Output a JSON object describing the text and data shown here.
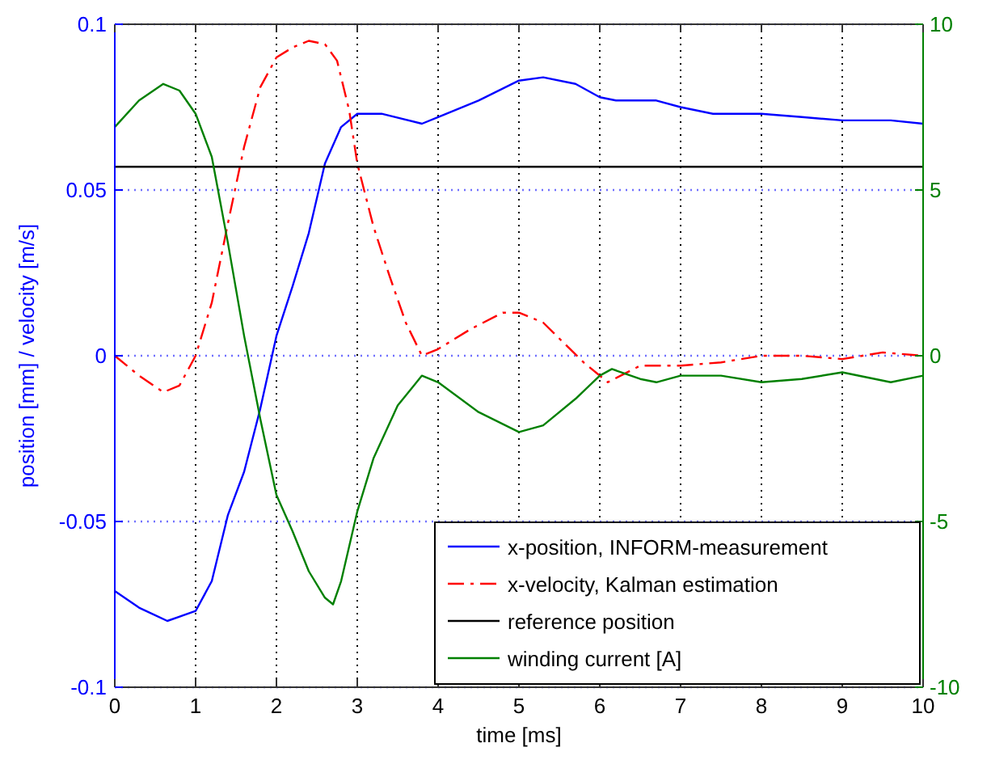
{
  "chart_data": {
    "type": "line",
    "xlabel": "time [ms]",
    "ylabel": "position [mm] / velocity [m/s]",
    "xlim": [
      0,
      10
    ],
    "xticks": [
      0,
      1,
      2,
      3,
      4,
      5,
      6,
      7,
      8,
      9,
      10
    ],
    "ylim": [
      -0.1,
      0.1
    ],
    "yticks": [
      -0.1,
      -0.05,
      0,
      0.05,
      0.1
    ],
    "y2lim": [
      -10,
      10
    ],
    "y2ticks": [
      -10,
      -5,
      0,
      5,
      10
    ],
    "grid": true,
    "legend": "bottom right",
    "series": [
      {
        "name": "x-position, INFORM-measurement",
        "color": "#0000ff",
        "line_style": "solid",
        "x": [
          0,
          0.3,
          0.65,
          1,
          1.2,
          1.4,
          1.6,
          1.8,
          2,
          2.2,
          2.4,
          2.6,
          2.8,
          3,
          3.3,
          3.8,
          4,
          4.5,
          5,
          5.3,
          5.7,
          6,
          6.2,
          6.7,
          7,
          7.4,
          8,
          8.5,
          9,
          9.6,
          10
        ],
        "values": [
          -0.071,
          -0.076,
          -0.08,
          -0.077,
          -0.068,
          -0.048,
          -0.035,
          -0.016,
          0.006,
          0.021,
          0.037,
          0.058,
          0.069,
          0.073,
          0.073,
          0.07,
          0.072,
          0.077,
          0.083,
          0.084,
          0.082,
          0.078,
          0.077,
          0.077,
          0.075,
          0.073,
          0.073,
          0.072,
          0.071,
          0.071,
          0.07
        ]
      },
      {
        "name": "x-velocity, Kalman estimation",
        "color": "#ff0000",
        "line_style": "dashed",
        "x": [
          0,
          0.3,
          0.6,
          0.8,
          1,
          1.2,
          1.4,
          1.6,
          1.8,
          2,
          2.2,
          2.4,
          2.6,
          2.75,
          2.9,
          3,
          3.2,
          3.4,
          3.6,
          3.8,
          4,
          4.4,
          4.8,
          5,
          5.3,
          5.8,
          6.1,
          6.5,
          7,
          7.5,
          8,
          8.5,
          9,
          9.5,
          10
        ],
        "values": [
          0,
          -0.006,
          -0.011,
          -0.009,
          0,
          0.016,
          0.04,
          0.063,
          0.081,
          0.09,
          0.093,
          0.095,
          0.094,
          0.089,
          0.074,
          0.058,
          0.039,
          0.024,
          0.01,
          0,
          0.002,
          0.008,
          0.013,
          0.013,
          0.01,
          -0.002,
          -0.008,
          -0.003,
          -0.003,
          -0.002,
          0,
          0,
          -0.001,
          0.001,
          0
        ]
      },
      {
        "name": "reference position",
        "color": "#000000",
        "line_style": "solid",
        "x": [
          0,
          10
        ],
        "values": [
          0.057,
          0.057
        ]
      },
      {
        "name": "winding current [A]",
        "color": "#008000",
        "line_style": "solid",
        "axis": "y2",
        "x": [
          0,
          0.3,
          0.6,
          0.8,
          1,
          1.2,
          1.4,
          1.6,
          1.8,
          2,
          2.2,
          2.4,
          2.6,
          2.7,
          2.8,
          3,
          3.2,
          3.5,
          3.8,
          4,
          4.5,
          5,
          5.3,
          5.7,
          6,
          6.15,
          6.5,
          6.7,
          7,
          7.5,
          8,
          8.5,
          9,
          9.6,
          10
        ],
        "values": [
          6.9,
          7.7,
          8.2,
          8,
          7.3,
          6,
          3.4,
          0.6,
          -1.9,
          -4.2,
          -5.3,
          -6.5,
          -7.3,
          -7.5,
          -6.8,
          -4.7,
          -3.1,
          -1.5,
          -0.6,
          -0.8,
          -1.7,
          -2.3,
          -2.1,
          -1.3,
          -0.6,
          -0.4,
          -0.7,
          -0.8,
          -0.6,
          -0.6,
          -0.8,
          -0.7,
          -0.5,
          -0.8,
          -0.6
        ]
      }
    ]
  }
}
